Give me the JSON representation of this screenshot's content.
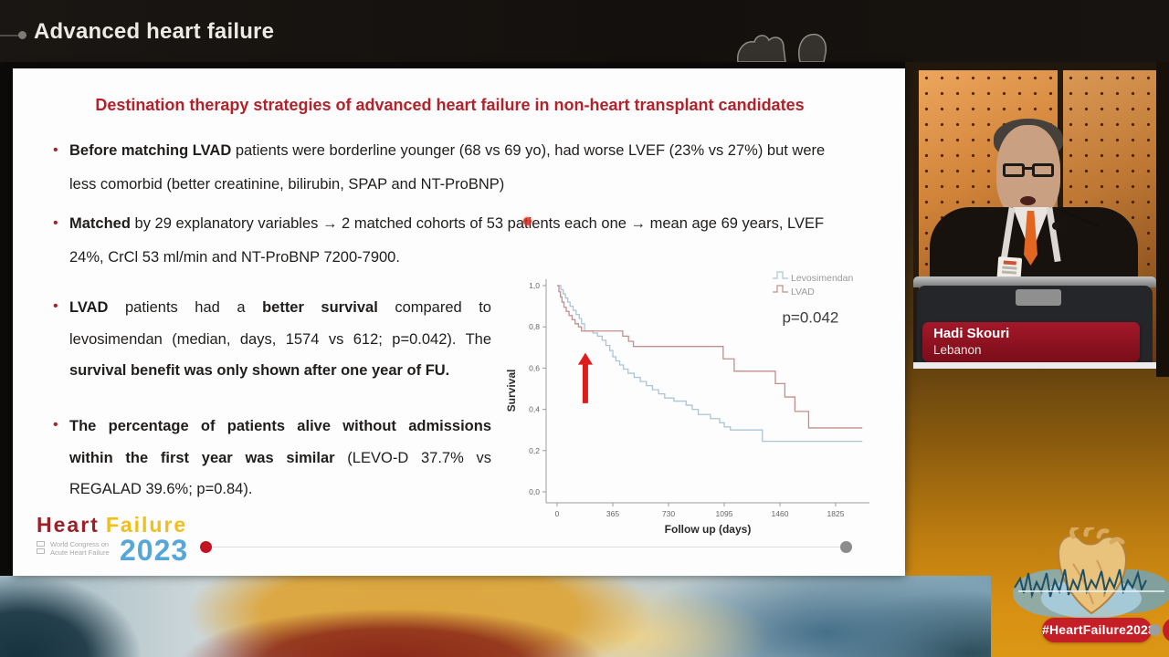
{
  "header": {
    "title": "Advanced heart failure"
  },
  "slide": {
    "title": "Destination therapy strategies of advanced heart failure in non-heart transplant candidates",
    "bullets": [
      {
        "segments": [
          {
            "bold": true,
            "text": "Before matching LVAD"
          },
          {
            "bold": false,
            "text": " patients were borderline younger (68 vs 69 yo), had worse LVEF (23% vs 27%) but were less comorbid (better creatinine, bilirubin, SPAP and NT-ProBNP)"
          }
        ]
      },
      {
        "segments": [
          {
            "bold": true,
            "text": "Matched"
          },
          {
            "bold": false,
            "text": " by 29 explanatory variables → 2 matched cohorts of 53 patients each one → mean age 69 years, LVEF 24%, CrCl 53 ml/min and NT-ProBNP 7200-7900."
          }
        ]
      },
      {
        "segments": [
          {
            "bold": true,
            "text": "LVAD"
          },
          {
            "bold": false,
            "text": " patients had a "
          },
          {
            "bold": true,
            "text": "better survival"
          },
          {
            "bold": false,
            "text": " compared to levosimendan (median, days, 1574 vs 612; p=0.042). The "
          },
          {
            "bold": true,
            "text": "survival benefit was only shown after one year of FU."
          }
        ]
      },
      {
        "segments": [
          {
            "bold": true,
            "text": "The percentage of patients alive without admissions within the first year was similar"
          },
          {
            "bold": false,
            "text": " (LEVO-D 37.7% vs REGALAD 39.6%; p=0.84)."
          }
        ]
      }
    ],
    "logo": {
      "word1": "Heart",
      "word2": "Failure",
      "year": "2023",
      "congress_line1": "World Congress on",
      "congress_line2": "Acute Heart Failure"
    }
  },
  "chart_data": {
    "type": "line",
    "subtype": "kaplan_meier_step",
    "title": "",
    "xlabel": "Follow up (days)",
    "ylabel": "Survival",
    "xlim": [
      0,
      2016
    ],
    "ylim": [
      0,
      1
    ],
    "xticks": [
      0,
      365,
      730,
      1095,
      1460,
      1825
    ],
    "yticks": [
      0,
      0.2,
      0.4,
      0.6,
      0.8,
      1
    ],
    "ytick_labels": [
      "0,0",
      "0,2",
      "0,4",
      "0,6",
      "0,8",
      "1,0"
    ],
    "grid": false,
    "legend_position": "top-right",
    "pvalue_label": "p=0.042",
    "pvalue_pos": {
      "x": 1660,
      "y": 0.82
    },
    "arrow_annotation": {
      "x": 185,
      "y_from": 0.43,
      "y_to": 0.67,
      "color": "#e01b1b"
    },
    "series": [
      {
        "name": "Levosimendan",
        "color": "#abc5d6",
        "points": [
          [
            0,
            1.0
          ],
          [
            25,
            0.98
          ],
          [
            40,
            0.96
          ],
          [
            55,
            0.94
          ],
          [
            70,
            0.92
          ],
          [
            85,
            0.9
          ],
          [
            105,
            0.88
          ],
          [
            125,
            0.86
          ],
          [
            145,
            0.84
          ],
          [
            160,
            0.815
          ],
          [
            180,
            0.78
          ],
          [
            235,
            0.77
          ],
          [
            265,
            0.755
          ],
          [
            295,
            0.735
          ],
          [
            320,
            0.71
          ],
          [
            345,
            0.685
          ],
          [
            365,
            0.655
          ],
          [
            385,
            0.635
          ],
          [
            410,
            0.615
          ],
          [
            435,
            0.595
          ],
          [
            465,
            0.575
          ],
          [
            505,
            0.555
          ],
          [
            545,
            0.535
          ],
          [
            585,
            0.515
          ],
          [
            625,
            0.495
          ],
          [
            665,
            0.475
          ],
          [
            705,
            0.455
          ],
          [
            765,
            0.44
          ],
          [
            845,
            0.42
          ],
          [
            885,
            0.4
          ],
          [
            925,
            0.375
          ],
          [
            1005,
            0.355
          ],
          [
            1065,
            0.335
          ],
          [
            1095,
            0.315
          ],
          [
            1135,
            0.3
          ],
          [
            1345,
            0.245
          ],
          [
            2000,
            0.245
          ]
        ]
      },
      {
        "name": "LVAD",
        "color": "#c38e8c",
        "points": [
          [
            0,
            1.0
          ],
          [
            12,
            0.97
          ],
          [
            22,
            0.945
          ],
          [
            32,
            0.92
          ],
          [
            45,
            0.895
          ],
          [
            60,
            0.875
          ],
          [
            78,
            0.855
          ],
          [
            98,
            0.835
          ],
          [
            118,
            0.815
          ],
          [
            140,
            0.8
          ],
          [
            160,
            0.78
          ],
          [
            430,
            0.755
          ],
          [
            468,
            0.73
          ],
          [
            500,
            0.705
          ],
          [
            1088,
            0.645
          ],
          [
            1160,
            0.585
          ],
          [
            1430,
            0.525
          ],
          [
            1492,
            0.46
          ],
          [
            1558,
            0.39
          ],
          [
            1648,
            0.31
          ],
          [
            2000,
            0.31
          ]
        ]
      }
    ]
  },
  "speaker": {
    "name": "Hadi Skouri",
    "country": "Lebanon"
  },
  "footer": {
    "hashtag": "#HeartFailure2023"
  },
  "colors": {
    "header_bg": "#17130f",
    "slide_bg": "#fdfdfd",
    "slide_title_red": "#b2222a",
    "body_text": "#201e1c",
    "logo_heart": "#9c2026",
    "logo_failure": "#f2be18",
    "logo_year": "#56a7d8",
    "nameplate_red": "#8c1220",
    "hashtag_red": "#c41e26",
    "orange_background": "#d89012",
    "laser_pointer": "#db2c1e",
    "progress_start_dot": "#c31220",
    "progress_end_dot": "#8c8c8c"
  }
}
